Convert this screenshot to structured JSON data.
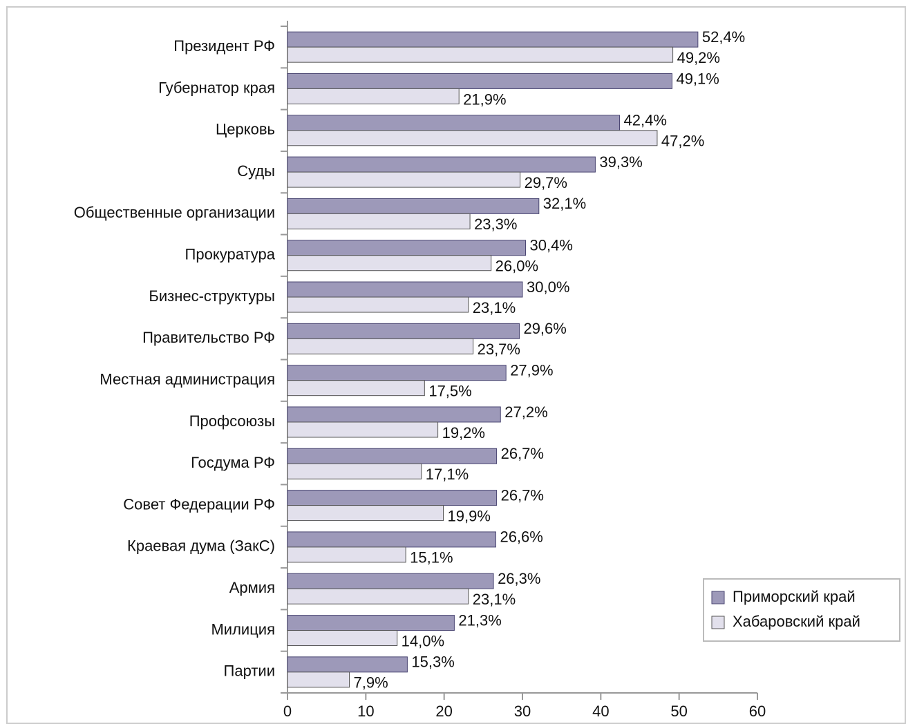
{
  "chart_data": {
    "type": "barh",
    "categories": [
      "Президент РФ",
      "Губернатор края",
      "Церковь",
      "Суды",
      "Общественные организации",
      "Прокуратура",
      "Бизнес-структуры",
      "Правительство РФ",
      "Местная администрация",
      "Профсоюзы",
      "Госдума РФ",
      "Совет Федерации РФ",
      "Краевая дума (ЗакС)",
      "Армия",
      "Милиция",
      "Партии"
    ],
    "series": [
      {
        "name": "Приморский край",
        "color": "#9d99b9",
        "values": [
          52.4,
          49.1,
          42.4,
          39.3,
          32.1,
          30.4,
          30.0,
          29.6,
          27.9,
          27.2,
          26.7,
          26.7,
          26.6,
          26.3,
          21.3,
          15.3
        ],
        "value_labels": [
          "52,4%",
          "49,1%",
          "42,4%",
          "39,3%",
          "32,1%",
          "30,4%",
          "30,0%",
          "29,6%",
          "27,9%",
          "27,2%",
          "26,7%",
          "26,7%",
          "26,6%",
          "26,3%",
          "21,3%",
          "15,3%"
        ]
      },
      {
        "name": "Хабаровский край",
        "color": "#e2e0ec",
        "values": [
          49.2,
          21.9,
          47.2,
          29.7,
          23.3,
          26.0,
          23.1,
          23.7,
          17.5,
          19.2,
          17.1,
          19.9,
          15.1,
          23.1,
          14.0,
          7.9
        ],
        "value_labels": [
          "49,2%",
          "21,9%",
          "47,2%",
          "29,7%",
          "23,3%",
          "26,0%",
          "23,1%",
          "23,7%",
          "17,5%",
          "19,2%",
          "17,1%",
          "19,9%",
          "15,1%",
          "23,1%",
          "14,0%",
          "7,9%"
        ]
      }
    ],
    "xlim": [
      0,
      60
    ],
    "xticks": [
      0,
      10,
      20,
      30,
      40,
      50,
      60
    ],
    "legend": "lower right"
  }
}
